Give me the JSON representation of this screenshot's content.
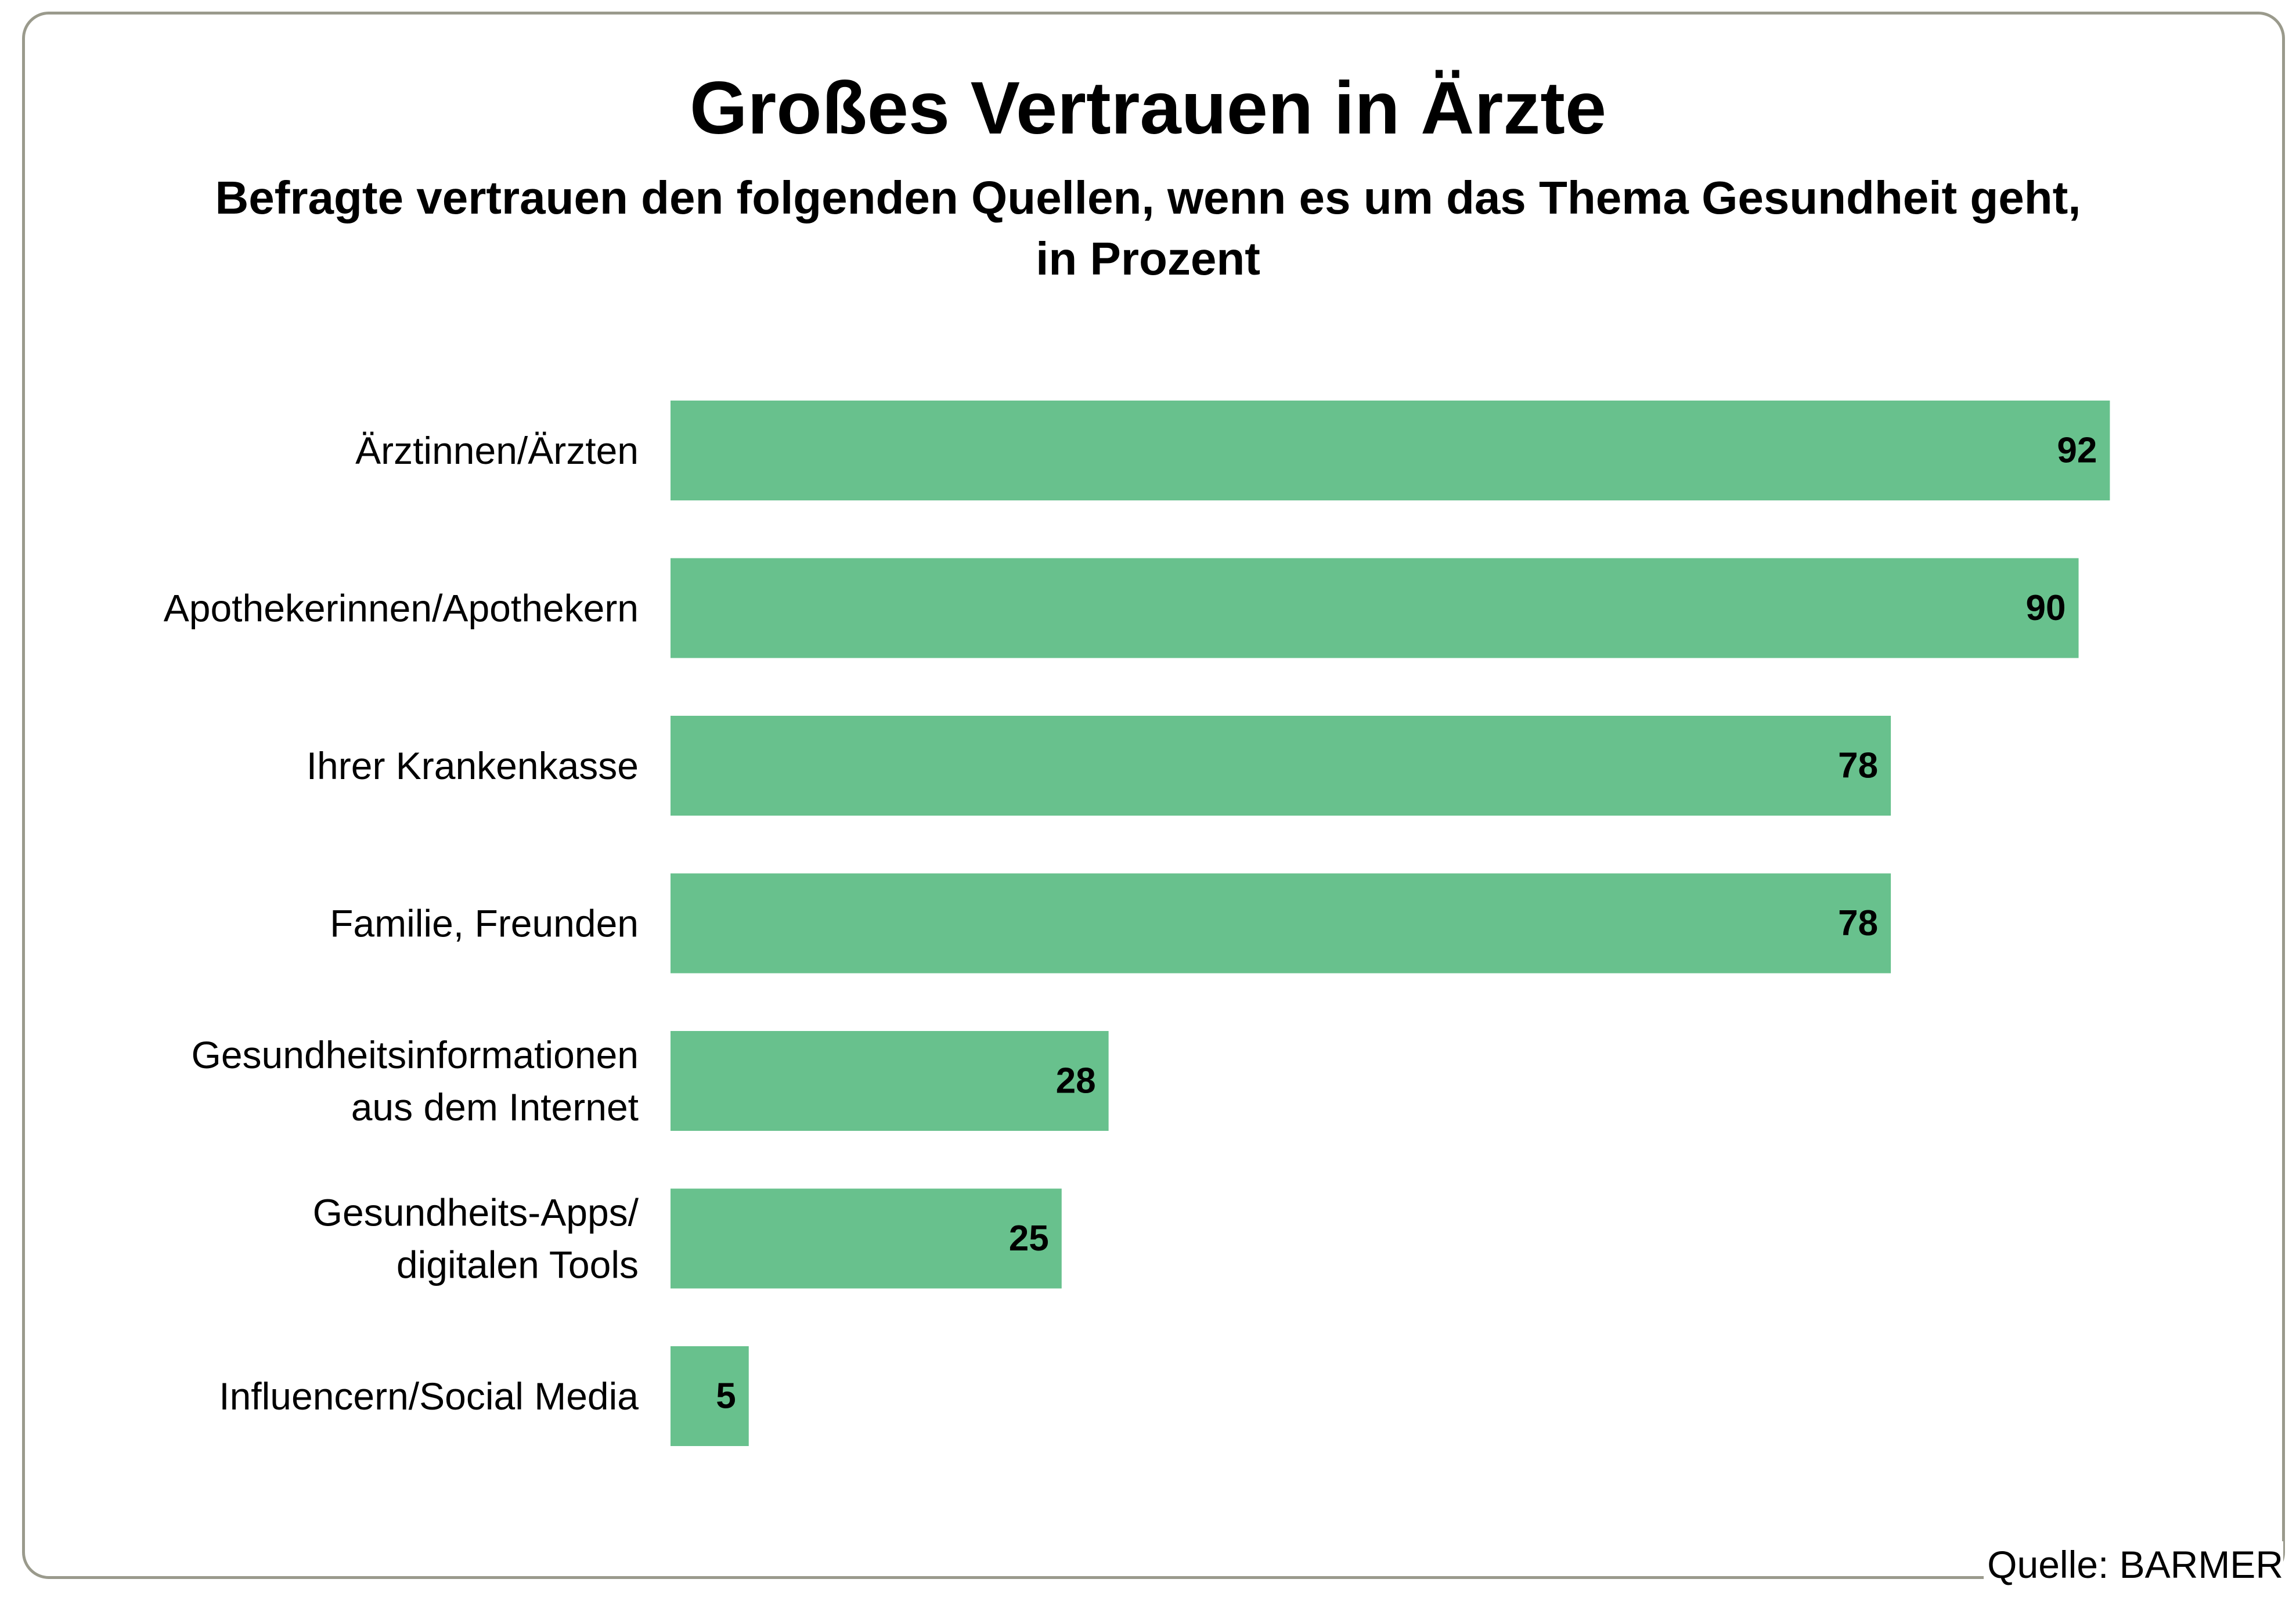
{
  "title": "Großes Vertrauen in Ärzte",
  "subtitle_line1": "Befragte vertrauen den folgenden Quellen, wenn es um das Thema Gesundheit geht,",
  "subtitle_line2": "in Prozent",
  "source": "Quelle: BARMER",
  "colors": {
    "bar": "#68c18d",
    "frame": "#9a9a8c",
    "text": "#000000"
  },
  "chart_data": {
    "type": "bar",
    "orientation": "horizontal",
    "title": "Großes Vertrauen in Ärzte",
    "subtitle": "Befragte vertrauen den folgenden Quellen, wenn es um das Thema Gesundheit geht, in Prozent",
    "categories": [
      [
        "Ärztinnen/Ärzten"
      ],
      [
        "Apothekerinnen/Apothekern"
      ],
      [
        "Ihrer Krankenkasse"
      ],
      [
        "Familie, Freunden"
      ],
      [
        "Gesundheitsinformationen",
        "aus dem Internet"
      ],
      [
        "Gesundheits-Apps/",
        "digitalen Tools"
      ],
      [
        "Influencern/Social Media"
      ]
    ],
    "values": [
      92,
      90,
      78,
      78,
      28,
      25,
      5
    ],
    "xlim": [
      0,
      100
    ],
    "grid": false,
    "legend": "none",
    "data_labels": true
  }
}
